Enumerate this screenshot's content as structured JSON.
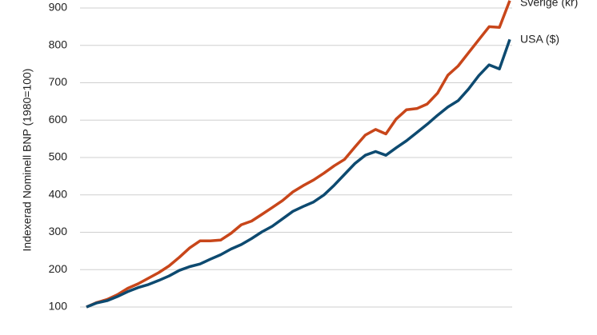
{
  "chart_data": {
    "type": "line",
    "y_label": "Indexerad Nominell BNP (1980=100)",
    "categories": [
      null,
      null,
      null,
      null,
      null,
      null,
      null,
      null,
      null,
      null,
      null,
      null,
      null,
      null,
      null,
      null,
      null,
      null,
      null,
      null,
      null,
      null,
      null,
      null,
      null,
      null,
      null,
      null,
      null,
      null,
      null,
      null,
      null,
      null,
      null,
      null,
      null,
      null,
      null,
      null,
      null,
      null
    ],
    "series": [
      {
        "name": "Sverige (kr)",
        "color": "#c8461a",
        "values": [
          100,
          112,
          120,
          133,
          150,
          162,
          177,
          192,
          210,
          233,
          258,
          277,
          277,
          279,
          297,
          320,
          330,
          348,
          366,
          385,
          408,
          425,
          440,
          458,
          478,
          495,
          528,
          560,
          575,
          563,
          603,
          628,
          631,
          643,
          672,
          720,
          745,
          780,
          815,
          850,
          848,
          920
        ]
      },
      {
        "name": "USA ($)",
        "color": "#0d4a70",
        "values": [
          100,
          111,
          117,
          128,
          141,
          152,
          160,
          171,
          183,
          198,
          208,
          215,
          228,
          240,
          255,
          267,
          283,
          301,
          316,
          336,
          356,
          369,
          381,
          400,
          426,
          455,
          484,
          506,
          516,
          506,
          526,
          545,
          567,
          589,
          613,
          635,
          652,
          683,
          719,
          748,
          737,
          816
        ]
      }
    ],
    "ylim": [
      100,
      900
    ],
    "yticks": [
      100,
      200,
      300,
      400,
      500,
      600,
      700,
      800,
      900
    ],
    "grid": true
  }
}
